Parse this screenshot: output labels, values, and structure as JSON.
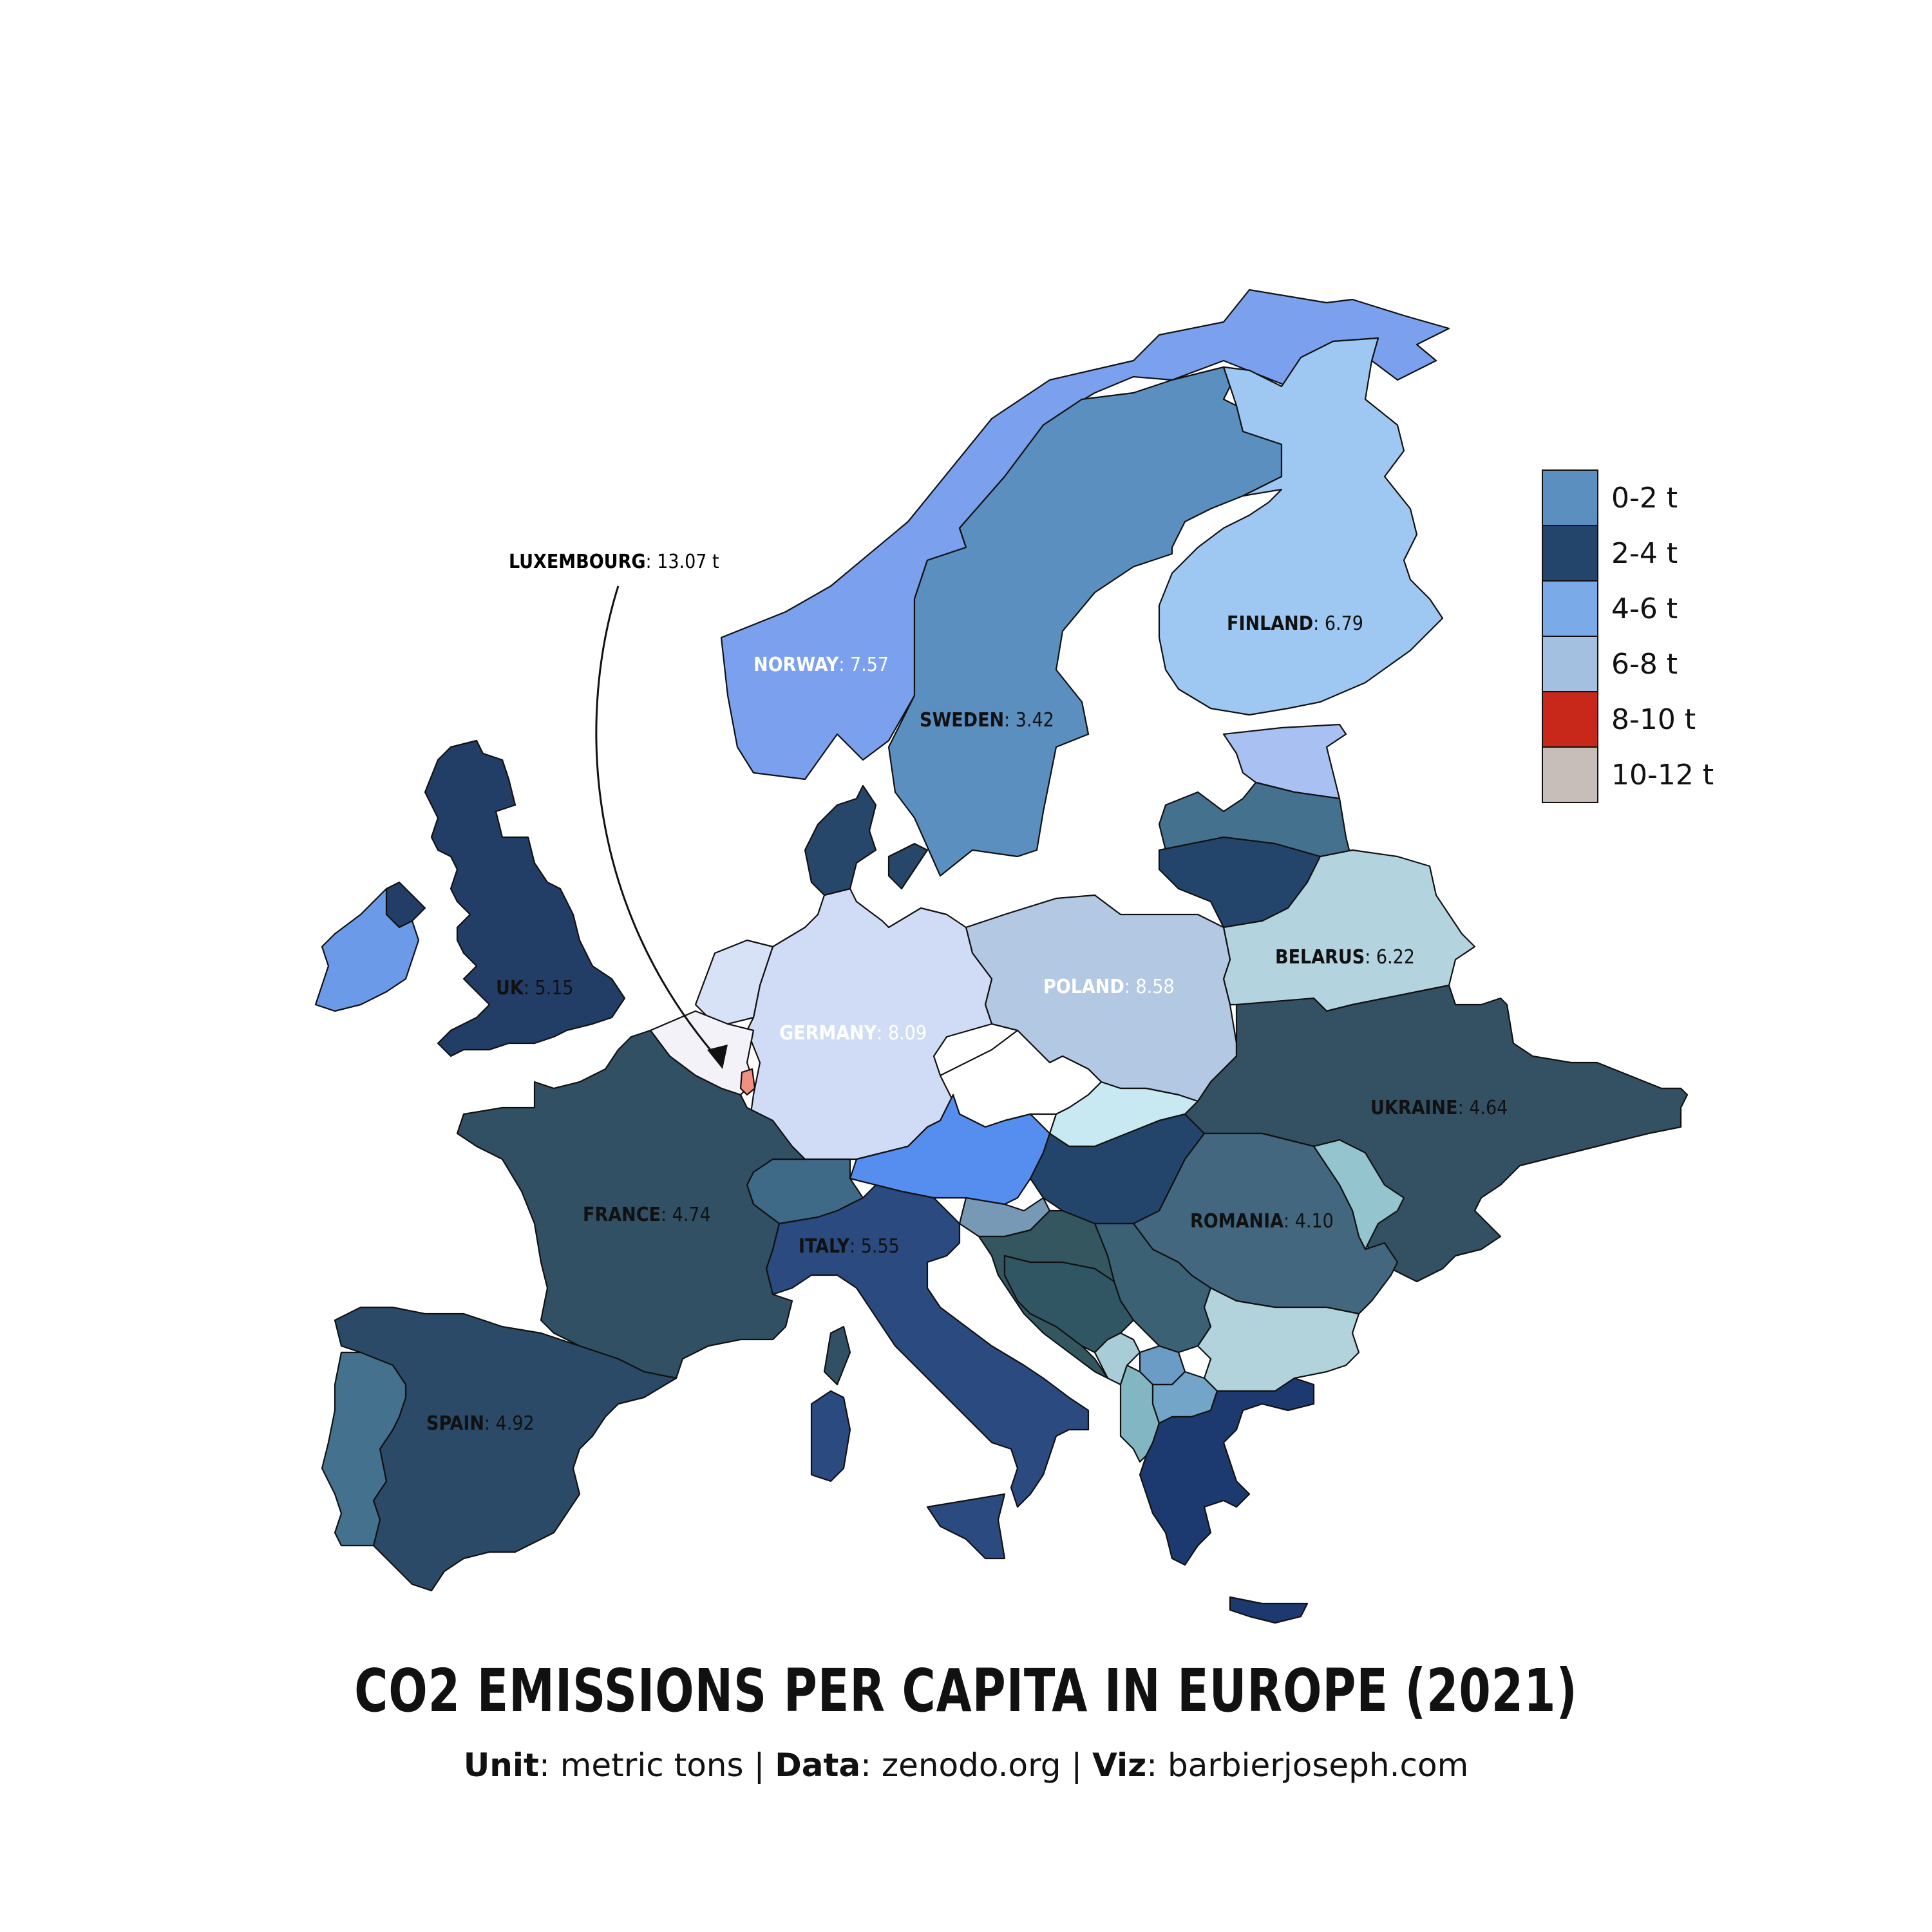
{
  "title": "CO2 EMISSIONS PER CAPITA IN EUROPE (2021)",
  "subtitle": {
    "unit_label": "Unit",
    "unit_value": "metric tons",
    "data_label": "Data",
    "data_value": "zenodo.org",
    "viz_label": "Viz",
    "viz_value": "barbierjoseph.com",
    "separator": "|"
  },
  "legend": [
    {
      "label": "0-2 t",
      "color": "#5b8fbf"
    },
    {
      "label": "2-4 t",
      "color": "#24456b"
    },
    {
      "label": "4-6 t",
      "color": "#7aaae8"
    },
    {
      "label": "6-8 t",
      "color": "#a3c0e0"
    },
    {
      "label": "8-10 t",
      "color": "#c8281a"
    },
    {
      "label": "10-12 t",
      "color": "#c7bdb9"
    }
  ],
  "callout": {
    "name": "LUXEMBOURG",
    "value": "13.07 t"
  },
  "labels": {
    "norway": {
      "name": "NORWAY",
      "value": "7.57"
    },
    "sweden": {
      "name": "SWEDEN",
      "value": "3.42"
    },
    "finland": {
      "name": "FINLAND",
      "value": "6.79"
    },
    "uk": {
      "name": "UK",
      "value": "5.15"
    },
    "germany": {
      "name": "GERMANY",
      "value": "8.09"
    },
    "poland": {
      "name": "POLAND",
      "value": "8.58"
    },
    "belarus": {
      "name": "BELARUS",
      "value": "6.22"
    },
    "ukraine": {
      "name": "UKRAINE",
      "value": "4.64"
    },
    "france": {
      "name": "FRANCE",
      "value": "4.74"
    },
    "romania": {
      "name": "ROMANIA",
      "value": "4.10"
    },
    "italy": {
      "name": "ITALY",
      "value": "5.55"
    },
    "spain": {
      "name": "SPAIN",
      "value": "4.92"
    }
  },
  "colors": {
    "norway": "#7aa0ee",
    "sweden": "#5b8fbf",
    "finland": "#9ec8f2",
    "uk": "#233e66",
    "ireland": "#6a9ae8",
    "germany": "#d0dcf6",
    "poland": "#b3c8e3",
    "belarus": "#b3d3de",
    "ukraine": "#335163",
    "france": "#315063",
    "spain": "#2a4a67",
    "portugal": "#44718e",
    "italy": "#2a4a80",
    "romania": "#42677f",
    "bulgaria": "#b2d2dc",
    "greece": "#1d3a70",
    "luxembourg": "#f09080",
    "estonia": "#a9c0f2",
    "latvia": "#44718e",
    "lithuania": "#24456b",
    "denmark": "#26466a",
    "austria": "#568ef0",
    "switzerland": "#3f6a87",
    "czechia": "#ffffff",
    "slovakia": "#c8e8f2",
    "hungary": "#24456b",
    "moldova": "#94c4ce",
    "serbia": "#3b6174",
    "croatia": "#34565f",
    "slovenia": "#7799b6",
    "bosnia": "#315663",
    "albania": "#82b6c3",
    "macedonia": "#73a5c8",
    "kosovo": "#6a9cc6",
    "montenegro": "#a8ccd8",
    "belgium": "#f2f2f8",
    "netherlands": "#d8e2f6",
    "sardinia": "#2a4a80",
    "corsica": "#315063"
  }
}
